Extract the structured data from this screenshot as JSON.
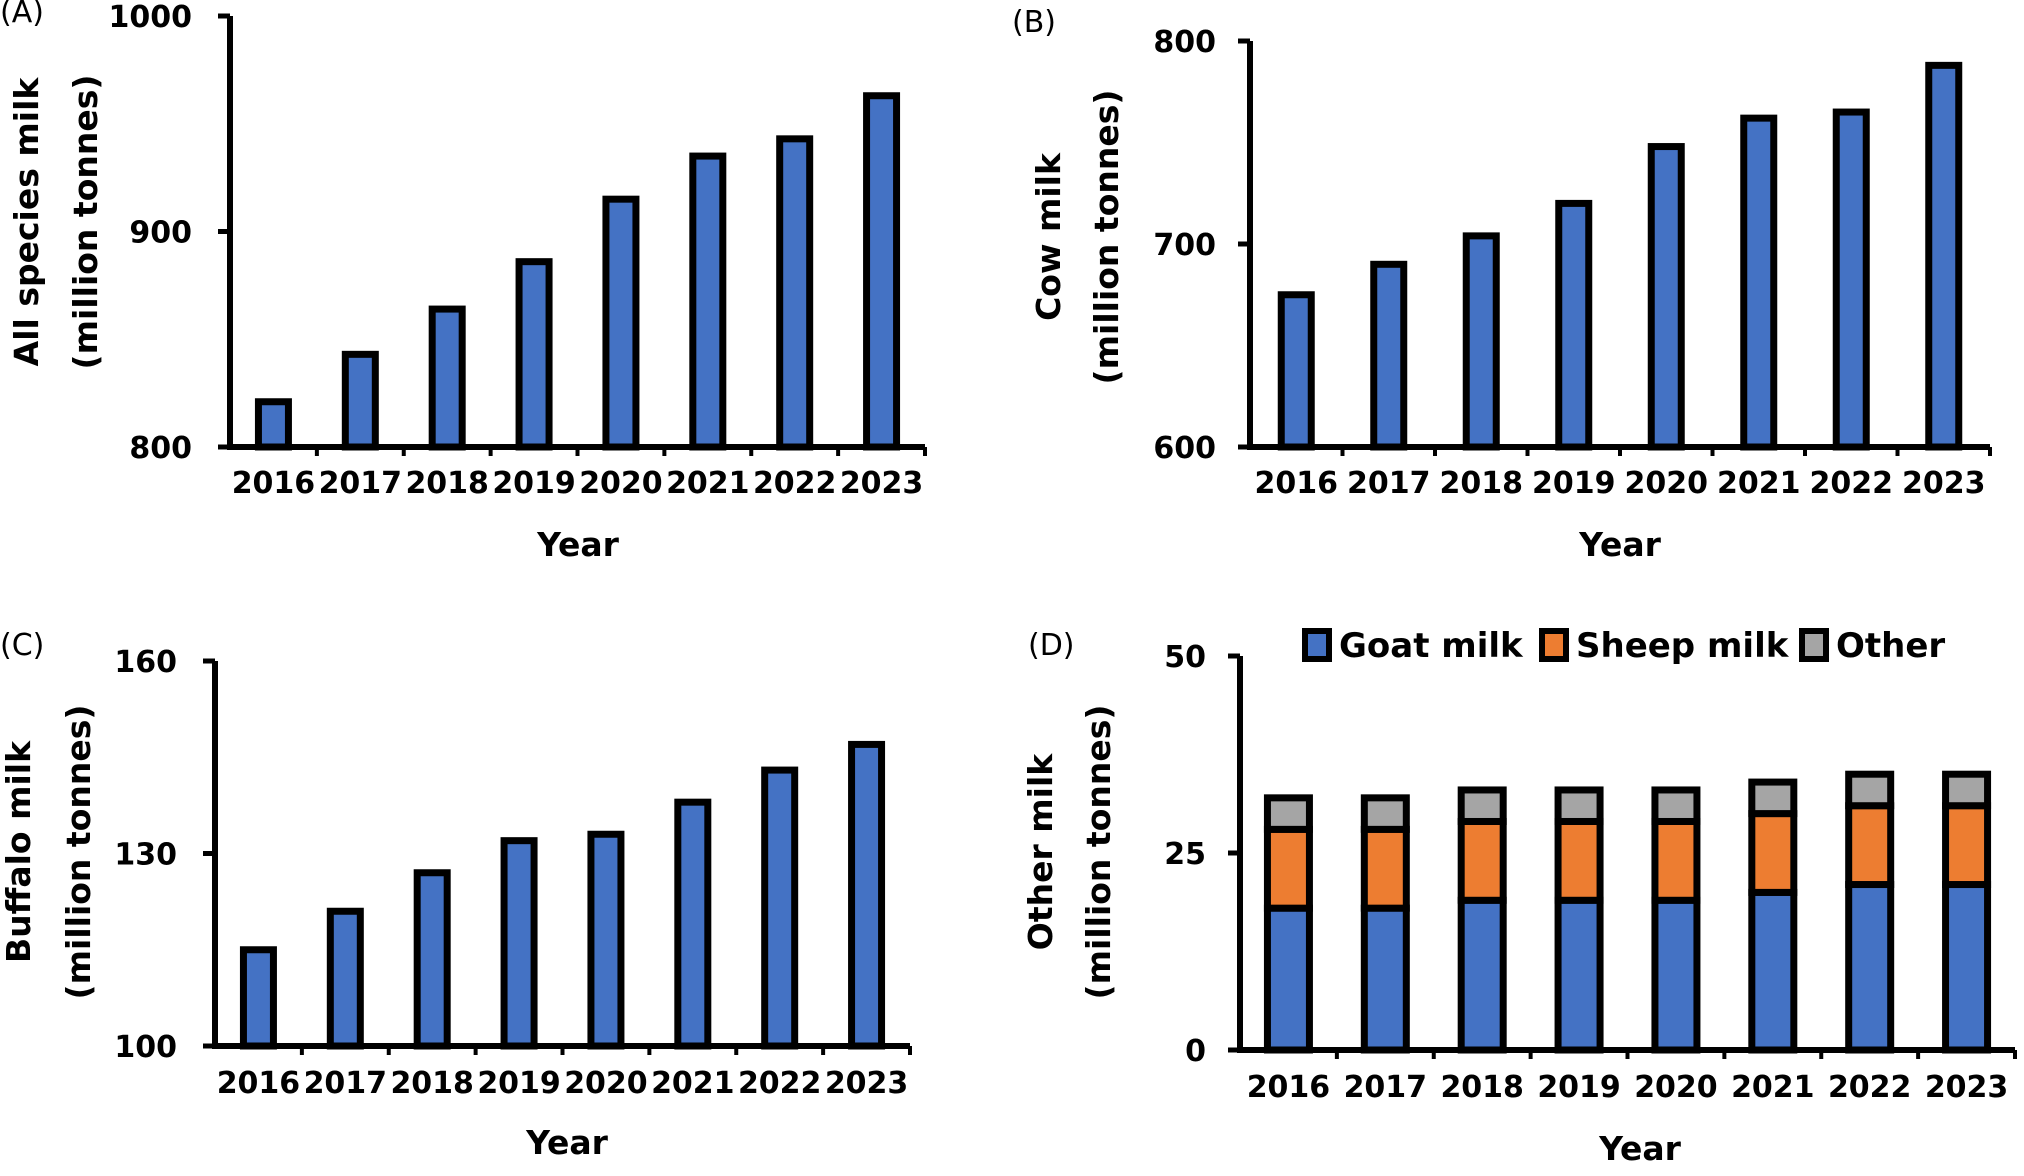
{
  "colors": {
    "goat": "#4472C4",
    "sheep": "#ED7D31",
    "other": "#A5A5A5",
    "bar_single": "#4472C4",
    "outline": "#000000"
  },
  "chart_data": [
    {
      "panel": "(A)",
      "type": "bar",
      "categories": [
        "2016",
        "2017",
        "2018",
        "2019",
        "2020",
        "2021",
        "2022",
        "2023"
      ],
      "values": [
        821,
        843,
        864,
        886,
        915,
        935,
        943,
        963
      ],
      "xlabel": "Year",
      "ylabel": [
        "All species milk",
        "(million tonnes)"
      ],
      "ylim": [
        800,
        1000
      ],
      "yticks": [
        800,
        900,
        1000
      ],
      "grid": false
    },
    {
      "panel": "(B)",
      "type": "bar",
      "categories": [
        "2016",
        "2017",
        "2018",
        "2019",
        "2020",
        "2021",
        "2022",
        "2023"
      ],
      "values": [
        675,
        690,
        704,
        720,
        748,
        762,
        765,
        788
      ],
      "xlabel": "Year",
      "ylabel": [
        "Cow milk",
        "(million tonnes)"
      ],
      "ylim": [
        600,
        800
      ],
      "yticks": [
        600,
        700,
        800
      ],
      "grid": false
    },
    {
      "panel": "(C)",
      "type": "bar",
      "categories": [
        "2016",
        "2017",
        "2018",
        "2019",
        "2020",
        "2021",
        "2022",
        "2023"
      ],
      "values": [
        115,
        121,
        127,
        132,
        133,
        138,
        143,
        147
      ],
      "xlabel": "Year",
      "ylabel": [
        "Buffalo milk",
        "(million tonnes)"
      ],
      "ylim": [
        100,
        160
      ],
      "yticks": [
        100,
        130,
        160
      ],
      "grid": false
    },
    {
      "panel": "(D)",
      "type": "bar",
      "stacked": true,
      "categories": [
        "2016",
        "2017",
        "2018",
        "2019",
        "2020",
        "2021",
        "2022",
        "2023"
      ],
      "series": [
        {
          "name": "Goat milk",
          "values": [
            18,
            18,
            19,
            19,
            19,
            20,
            21,
            21
          ]
        },
        {
          "name": "Sheep milk",
          "values": [
            10,
            10,
            10,
            10,
            10,
            10,
            10,
            10
          ]
        },
        {
          "name": "Other",
          "values": [
            4,
            4,
            4,
            4,
            4,
            4,
            4,
            4
          ]
        }
      ],
      "xlabel": "Year",
      "ylabel": [
        "Other milk",
        "(million tonnes)"
      ],
      "ylim": [
        0,
        50
      ],
      "yticks": [
        0,
        25,
        50
      ],
      "legend_position": "top",
      "grid": false
    }
  ]
}
